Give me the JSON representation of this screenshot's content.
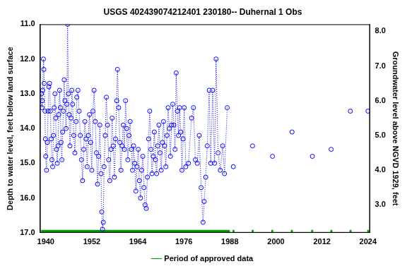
{
  "chart_data": {
    "type": "line",
    "title": "USGS 402439074212401 230180-- Duhernal 1 Obs",
    "y_label": "Depth to water level, feet below land surface",
    "y2_label": "Groundwater level above NGVD 1929, feet",
    "xlim": [
      1938.5,
      2024.5
    ],
    "xticks": [
      1940,
      1952,
      1964,
      1976,
      1988,
      2000,
      2012,
      2024
    ],
    "ylim": [
      11,
      17
    ],
    "yticks": [
      {
        "value": 11,
        "label": "11.0"
      },
      {
        "value": 12,
        "label": "12.0"
      },
      {
        "value": 13,
        "label": "13.0"
      },
      {
        "value": 14,
        "label": "14.0"
      },
      {
        "value": 15,
        "label": "15.0"
      },
      {
        "value": 16,
        "label": "16.0"
      },
      {
        "value": 17,
        "label": "17.0"
      }
    ],
    "y2lim": [
      2.2,
      8.2
    ],
    "y2ticks": [
      {
        "value": 3,
        "label": "3.0"
      },
      {
        "value": 4,
        "label": "4.0"
      },
      {
        "value": 5,
        "label": "5.0"
      },
      {
        "value": 6,
        "label": "6.0"
      },
      {
        "value": 7,
        "label": "7.0"
      },
      {
        "value": 8,
        "label": "8.0"
      }
    ],
    "grid": false,
    "legend": "bottom",
    "series": [
      {
        "color": "#0000ff",
        "marker": "circle",
        "line_style": "dotted",
        "x": [
          1938.9,
          1939.0,
          1939.1,
          1939.2,
          1939.4,
          1939.5,
          1939.6,
          1939.8,
          1939.9,
          1940.0,
          1940.2,
          1940.4,
          1940.6,
          1940.8,
          1941.0,
          1941.2,
          1941.4,
          1941.6,
          1941.8,
          1942.0,
          1942.2,
          1942.4,
          1942.6,
          1942.8,
          1943.0,
          1943.2,
          1943.4,
          1943.6,
          1943.8,
          1944.0,
          1944.2,
          1944.4,
          1944.6,
          1944.8,
          1945.0,
          1945.3,
          1945.5,
          1945.7,
          1945.9,
          1946.1,
          1946.3,
          1946.6,
          1946.8,
          1947.0,
          1947.3,
          1947.6,
          1947.9,
          1948.1,
          1948.4,
          1948.7,
          1949.0,
          1949.3,
          1949.6,
          1949.9,
          1950.2,
          1950.5,
          1950.8,
          1951.1,
          1951.4,
          1951.7,
          1952.0,
          1952.3,
          1952.6,
          1952.9,
          1953.2,
          1953.5,
          1953.8,
          1954.1,
          1954.4,
          1954.6,
          1954.8,
          1955.0,
          1955.2,
          1955.5,
          1955.8,
          1956.1,
          1956.4,
          1956.7,
          1957.0,
          1957.3,
          1957.6,
          1957.9,
          1958.2,
          1958.5,
          1958.7,
          1959.0,
          1959.3,
          1959.6,
          1959.9,
          1960.2,
          1960.5,
          1960.8,
          1961.1,
          1961.4,
          1961.7,
          1962.0,
          1962.3,
          1962.6,
          1962.9,
          1963.2,
          1963.5,
          1963.8,
          1964.1,
          1964.4,
          1964.7,
          1965.0,
          1965.3,
          1965.6,
          1965.9,
          1966.2,
          1966.5,
          1966.8,
          1967.1,
          1967.4,
          1967.7,
          1968.0,
          1968.3,
          1968.6,
          1968.9,
          1969.2,
          1969.5,
          1969.8,
          1970.1,
          1970.4,
          1970.7,
          1971.0,
          1971.3,
          1971.6,
          1971.9,
          1972.2,
          1972.5,
          1972.8,
          1973.1,
          1973.4,
          1973.7,
          1974.0,
          1974.3,
          1974.6,
          1974.9,
          1975.2,
          1975.5,
          1975.8,
          1976.1,
          1976.5,
          1977.2,
          1978.0,
          1978.5,
          1979.0,
          1979.5,
          1980.0,
          1980.5,
          1981.0,
          1981.3,
          1981.7,
          1982.1,
          1982.6,
          1983.0,
          1983.5,
          1984.0,
          1984.4,
          1984.9,
          1985.5,
          1986.1,
          1986.6,
          1987.3,
          null,
          1988.9,
          null,
          1993.9,
          null,
          1999.1,
          null,
          2004.2,
          null,
          2009.5,
          null,
          2014.4,
          null,
          2019.4,
          null,
          2024.0
        ],
        "values": [
          13.0,
          13.4,
          13.2,
          12.9,
          12.0,
          12.3,
          12.7,
          13.5,
          14.3,
          14.8,
          15.2,
          14.4,
          13.5,
          12.8,
          12.7,
          13.5,
          14.3,
          14.9,
          15.1,
          14.2,
          13.4,
          13.0,
          13.7,
          14.6,
          15.0,
          14.5,
          13.6,
          12.9,
          13.4,
          14.4,
          14.9,
          14.1,
          13.5,
          12.6,
          13.2,
          14.0,
          13.3,
          11.0,
          13.0,
          13.6,
          14.5,
          13.7,
          12.9,
          13.3,
          14.2,
          14.7,
          13.8,
          13.1,
          12.9,
          13.5,
          14.2,
          14.9,
          15.5,
          14.6,
          13.8,
          14.3,
          15.1,
          14.2,
          13.6,
          14.4,
          15.2,
          13.5,
          12.9,
          13.8,
          14.7,
          15.6,
          14.8,
          13.9,
          15.3,
          16.4,
          16.9,
          16.7,
          15.1,
          14.2,
          13.1,
          13.9,
          14.9,
          15.5,
          14.6,
          13.7,
          14.5,
          15.4,
          14.3,
          13.2,
          12.3,
          13.4,
          14.4,
          15.2,
          14.5,
          13.9,
          14.6,
          13.2,
          14.0,
          14.9,
          14.2,
          13.8,
          14.6,
          15.2,
          14.5,
          15.0,
          15.8,
          15.1,
          14.6,
          15.5,
          16.0,
          15.2,
          14.8,
          15.7,
          16.2,
          16.3,
          15.4,
          14.3,
          13.5,
          14.6,
          15.3,
          14.8,
          14.1,
          14.9,
          15.3,
          14.5,
          13.9,
          14.7,
          15.2,
          14.4,
          13.8,
          14.5,
          15.1,
          14.2,
          13.4,
          14.0,
          14.8,
          13.9,
          13.3,
          13.9,
          14.6,
          12.4,
          13.5,
          14.2,
          13.4,
          14.1,
          15.2,
          14.3,
          13.4,
          15.1,
          15.0,
          13.7,
          13.4,
          14.9,
          15.0,
          14.2,
          15.7,
          16.7,
          16.1,
          15.4,
          14.5,
          12.9,
          15.0,
          12.9,
          15.0,
          12.0,
          14.7,
          15.2,
          14.5,
          15.3,
          13.4,
          null,
          15.1,
          null,
          14.5,
          null,
          14.8,
          null,
          14.1,
          null,
          14.8,
          null,
          14.6,
          null,
          13.5,
          null,
          13.5
        ]
      },
      {
        "name": "Period of approved data",
        "color": "#00a000",
        "line_style": "solid",
        "x": [
          1938.8,
          1988.0,
          null,
          1988.7,
          1989.2,
          null,
          1993.7,
          1994.2,
          null,
          1998.8,
          1999.3,
          null,
          2003.9,
          2004.4,
          null,
          2009.2,
          2009.7,
          null,
          2014.2,
          2014.7,
          null,
          2019.2,
          2019.7,
          null,
          2023.8,
          2024.3
        ],
        "values": [
          16.96,
          16.96,
          null,
          16.96,
          16.96,
          null,
          16.96,
          16.96,
          null,
          16.96,
          16.96,
          null,
          16.96,
          16.96,
          null,
          16.96,
          16.96,
          null,
          16.96,
          16.96,
          null,
          16.96,
          16.96,
          null,
          16.96,
          16.96
        ]
      }
    ]
  }
}
